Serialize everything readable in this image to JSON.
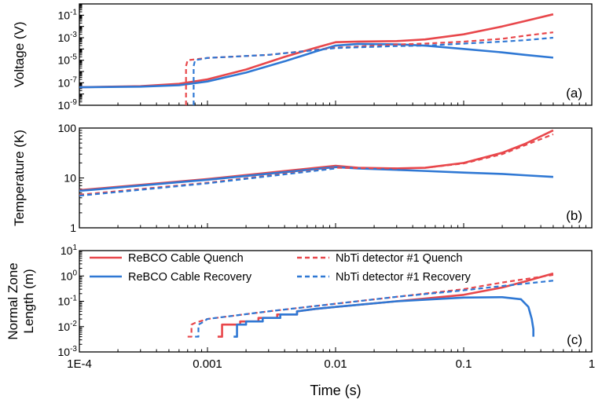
{
  "colors": {
    "quench": "#e8474b",
    "recovery": "#2f78d4",
    "axis": "#000000"
  },
  "xaxis": {
    "label": "Time (s)",
    "scale": "log",
    "range": [
      0.0001,
      1
    ],
    "ticks": [
      {
        "v": 0.0001,
        "label": "1E-4"
      },
      {
        "v": 0.001,
        "label": "0.001"
      },
      {
        "v": 0.01,
        "label": "0.01"
      },
      {
        "v": 0.1,
        "label": "0.1"
      },
      {
        "v": 1,
        "label": "1"
      }
    ]
  },
  "chart_data": [
    {
      "type": "line",
      "panel_label": "(a)",
      "ylabel": "Voltage (V)",
      "yscale": "log",
      "ylim": [
        1e-09,
        1
      ],
      "yticks": [
        {
          "v": 1e-09,
          "base": "10",
          "exp": "-9"
        },
        {
          "v": 1e-07,
          "base": "10",
          "exp": "-7"
        },
        {
          "v": 1e-05,
          "base": "10",
          "exp": "-5"
        },
        {
          "v": 0.001,
          "base": "10",
          "exp": "-3"
        },
        {
          "v": 0.1,
          "base": "10",
          "exp": "-1"
        }
      ],
      "series": [
        {
          "key": "cable_quench",
          "color_key": "quench",
          "dash": false,
          "x": [
            0.0001,
            0.0003,
            0.0006,
            0.001,
            0.002,
            0.004,
            0.007,
            0.01,
            0.015,
            0.03,
            0.05,
            0.1,
            0.2,
            0.3,
            0.5
          ],
          "y": [
            4e-08,
            5e-08,
            8e-08,
            2e-07,
            1.5e-06,
            2e-05,
            0.00013,
            0.0004,
            0.00045,
            0.0005,
            0.0007,
            0.002,
            0.01,
            0.03,
            0.12
          ]
        },
        {
          "key": "cable_recovery",
          "color_key": "recovery",
          "dash": false,
          "x": [
            0.0001,
            0.0003,
            0.0006,
            0.001,
            0.002,
            0.004,
            0.007,
            0.01,
            0.015,
            0.03,
            0.05,
            0.1,
            0.2,
            0.3,
            0.5
          ],
          "y": [
            4e-08,
            4.5e-08,
            6e-08,
            1.3e-07,
            8e-07,
            8e-06,
            6e-05,
            0.0002,
            0.00028,
            0.00026,
            0.0002,
            0.0001,
            5e-05,
            3e-05,
            1.7e-05
          ]
        },
        {
          "key": "nbti_quench",
          "color_key": "quench",
          "dash": true,
          "x": [
            0.00068,
            0.00068,
            0.0007,
            0.001,
            0.003,
            0.01,
            0.03,
            0.05,
            0.1,
            0.2,
            0.3,
            0.5
          ],
          "y": [
            1e-09,
            3e-06,
            1e-05,
            1.6e-05,
            3e-05,
            0.00013,
            0.00025,
            0.0003,
            0.00045,
            0.0008,
            0.0015,
            0.003
          ]
        },
        {
          "key": "nbti_recovery",
          "color_key": "recovery",
          "dash": true,
          "x": [
            0.00078,
            0.00078,
            0.0008,
            0.001,
            0.003,
            0.01,
            0.03,
            0.05,
            0.1,
            0.2,
            0.3,
            0.5
          ],
          "y": [
            1e-09,
            3e-06,
            1e-05,
            1.6e-05,
            3e-05,
            0.00012,
            0.00018,
            0.0002,
            0.0003,
            0.00045,
            0.0006,
            0.001
          ]
        }
      ]
    },
    {
      "type": "line",
      "panel_label": "(b)",
      "ylabel": "Temperature (K)",
      "yscale": "log",
      "ylim": [
        1,
        100
      ],
      "yticks": [
        {
          "v": 1,
          "label": "1"
        },
        {
          "v": 10,
          "label": "10"
        },
        {
          "v": 100,
          "label": "100"
        }
      ],
      "series": [
        {
          "key": "cable_quench",
          "color_key": "quench",
          "dash": false,
          "x": [
            0.0001,
            0.001,
            0.01,
            0.015,
            0.03,
            0.05,
            0.1,
            0.2,
            0.3,
            0.5
          ],
          "y": [
            5.7,
            9.5,
            17.5,
            16,
            15.5,
            16,
            20,
            32,
            48,
            90
          ]
        },
        {
          "key": "cable_recovery",
          "color_key": "recovery",
          "dash": false,
          "x": [
            0.0001,
            0.001,
            0.01,
            0.015,
            0.03,
            0.05,
            0.1,
            0.2,
            0.3,
            0.5
          ],
          "y": [
            5.5,
            9.2,
            16.5,
            15.5,
            14.5,
            13.8,
            12.8,
            12,
            11.3,
            10.5
          ]
        },
        {
          "key": "nbti_quench",
          "color_key": "quench",
          "dash": true,
          "x": [
            0.0001,
            0.001,
            0.01,
            0.015,
            0.03,
            0.05,
            0.1,
            0.2,
            0.3,
            0.5
          ],
          "y": [
            4.6,
            8,
            16,
            15.8,
            15.5,
            16,
            19.5,
            30,
            45,
            75
          ]
        },
        {
          "key": "nbti_recovery",
          "color_key": "recovery",
          "dash": true,
          "x": [
            0.0001,
            0.001,
            0.01
          ],
          "y": [
            4.4,
            7.8,
            15.5
          ]
        }
      ]
    },
    {
      "type": "line",
      "panel_label": "(c)",
      "ylabel": "Normal Zone Length (m)",
      "yscale": "log",
      "ylim": [
        0.001,
        10
      ],
      "yticks": [
        {
          "v": 0.001,
          "base": "10",
          "exp": "-3"
        },
        {
          "v": 0.01,
          "base": "10",
          "exp": "-2"
        },
        {
          "v": 0.1,
          "base": "10",
          "exp": "-1"
        },
        {
          "v": 1,
          "base": "10",
          "exp": "0"
        },
        {
          "v": 10,
          "base": "10",
          "exp": "1"
        }
      ],
      "series": [
        {
          "name": "ReBCO Cable Quench",
          "key": "cable_quench",
          "color_key": "quench",
          "dash": false,
          "x": [
            0.0012,
            0.0012,
            0.0013,
            0.0013,
            0.0018,
            0.0018,
            0.0025,
            0.0025,
            0.0035,
            0.0035,
            0.005,
            0.005,
            0.007,
            0.01,
            0.03,
            0.1,
            0.2,
            0.3,
            0.5
          ],
          "y": [
            0.004,
            0.004,
            0.004,
            0.012,
            0.012,
            0.016,
            0.016,
            0.022,
            0.022,
            0.03,
            0.03,
            0.04,
            0.05,
            0.06,
            0.1,
            0.18,
            0.35,
            0.6,
            1.25
          ]
        },
        {
          "name": "ReBCO Cable Recovery",
          "key": "cable_recovery",
          "color_key": "recovery",
          "dash": false,
          "x": [
            0.0016,
            0.0017,
            0.0017,
            0.002,
            0.002,
            0.0027,
            0.0027,
            0.0037,
            0.0037,
            0.005,
            0.005,
            0.007,
            0.01,
            0.03,
            0.1,
            0.2,
            0.28,
            0.32,
            0.34,
            0.35,
            0.35
          ],
          "y": [
            0.004,
            0.004,
            0.012,
            0.012,
            0.016,
            0.016,
            0.022,
            0.022,
            0.03,
            0.03,
            0.04,
            0.05,
            0.06,
            0.1,
            0.14,
            0.145,
            0.12,
            0.06,
            0.02,
            0.008,
            0.004
          ]
        },
        {
          "name": "NbTi detector #1 Quench",
          "key": "nbti_quench",
          "color_key": "quench",
          "dash": true,
          "x": [
            0.0007,
            0.00075,
            0.00075,
            0.0008,
            0.001,
            0.003,
            0.01,
            0.03,
            0.1,
            0.2,
            0.5
          ],
          "y": [
            0.004,
            0.004,
            0.012,
            0.014,
            0.02,
            0.04,
            0.08,
            0.15,
            0.3,
            0.55,
            1.1
          ]
        },
        {
          "name": "NbTi detector #1 Recovery",
          "key": "nbti_recovery",
          "color_key": "recovery",
          "dash": true,
          "x": [
            0.0008,
            0.00085,
            0.00085,
            0.0009,
            0.001,
            0.003,
            0.01,
            0.03,
            0.1,
            0.2,
            0.5
          ],
          "y": [
            0.004,
            0.004,
            0.012,
            0.014,
            0.02,
            0.04,
            0.08,
            0.15,
            0.27,
            0.4,
            0.65
          ]
        }
      ]
    }
  ]
}
